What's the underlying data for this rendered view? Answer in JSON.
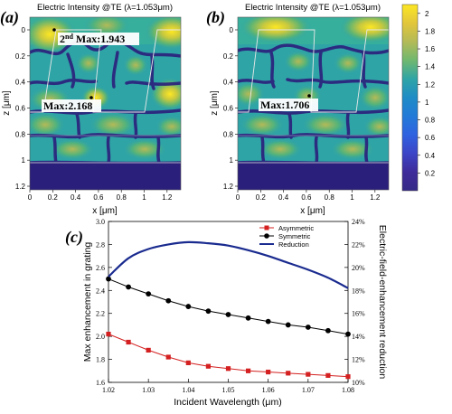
{
  "panel_a": {
    "letter": "(a)",
    "title": "Electric Intensity @TE (λ=1.053μm)",
    "xlabel": "x [μm]",
    "ylabel": "z [μm]",
    "xticks": [
      "0",
      "0.2",
      "0.4",
      "0.6",
      "0.8",
      "1",
      "1.2"
    ],
    "yticks": [
      "0",
      "0.2",
      "0.4",
      "0.6",
      "0.8",
      "1",
      "1.2"
    ],
    "ann_second_prefix": "2",
    "ann_second_sup": "nd",
    "ann_second_text": " Max:1.943",
    "ann_max_text": "Max:2.168"
  },
  "panel_b": {
    "letter": "(b)",
    "title": "Electric Intensity @TE (λ=1.053μm)",
    "xlabel": "x [μm]",
    "ylabel": "z [μm]",
    "xticks": [
      "0",
      "0.2",
      "0.4",
      "0.6",
      "0.8",
      "1",
      "1.2"
    ],
    "yticks": [
      "0",
      "0.2",
      "0.4",
      "0.6",
      "0.8",
      "1",
      "1.2"
    ],
    "ann_max_text": "Max:1.706"
  },
  "colorbar": {
    "ticks": [
      "2",
      "1.8",
      "1.6",
      "1.4",
      "1.2",
      "1",
      "0.8",
      "0.6",
      "0.4",
      "0.2"
    ],
    "stops": [
      "#fde724",
      "#e2c63b",
      "#b3ba57",
      "#6fb86f",
      "#2fa4a6",
      "#1f8cc6",
      "#237ad8",
      "#2f62e0",
      "#3c45c6",
      "#3e2b9a",
      "#352a87"
    ]
  },
  "panel_c": {
    "letter": "(c)",
    "xlabel": "Incident Wavelength (μm)",
    "ylabel_left": "Max enhancement in grating",
    "ylabel_right": "Electric-field-enhancement reduction",
    "xticks": [
      "1.02",
      "1.03",
      "1.04",
      "1.05",
      "1.06",
      "1.07",
      "1.08"
    ],
    "yticks_left": [
      "1.6",
      "1.8",
      "2.0",
      "2.2",
      "2.4",
      "2.6",
      "2.8",
      "3.0"
    ],
    "yticks_right": [
      "10%",
      "12%",
      "14%",
      "16%",
      "18%",
      "20%",
      "22%",
      "24%"
    ]
  },
  "colors": {
    "asymmetric": "#d42020",
    "symmetric": "#000000",
    "reduction": "#1a2b8f",
    "deep": "#2b1f7c"
  },
  "chart_data": {
    "type": "line",
    "xlabel": "Incident Wavelength (μm)",
    "ylabel": "Max enhancement in grating",
    "ylabel_right": "Electric-field-enhancement reduction",
    "xlim": [
      1.02,
      1.08
    ],
    "ylim": [
      1.6,
      3.0
    ],
    "ylim_right": [
      10,
      24
    ],
    "legend_position": "top-right",
    "x": [
      1.02,
      1.025,
      1.03,
      1.035,
      1.04,
      1.045,
      1.05,
      1.055,
      1.06,
      1.065,
      1.07,
      1.075,
      1.08
    ],
    "series": [
      {
        "name": "Asymmetric",
        "axis": "left",
        "marker": "square",
        "values": [
          2.02,
          1.95,
          1.88,
          1.82,
          1.77,
          1.74,
          1.72,
          1.7,
          1.69,
          1.68,
          1.67,
          1.66,
          1.65
        ]
      },
      {
        "name": "Symmetric",
        "axis": "left",
        "marker": "circle",
        "values": [
          2.5,
          2.43,
          2.37,
          2.31,
          2.26,
          2.22,
          2.19,
          2.16,
          2.13,
          2.1,
          2.08,
          2.05,
          2.02
        ]
      },
      {
        "name": "Reduction",
        "axis": "right",
        "marker": "none",
        "values": [
          19.2,
          20.8,
          21.6,
          22.0,
          22.2,
          22.1,
          21.9,
          21.5,
          21.0,
          20.4,
          19.8,
          19.1,
          18.2
        ]
      }
    ]
  }
}
